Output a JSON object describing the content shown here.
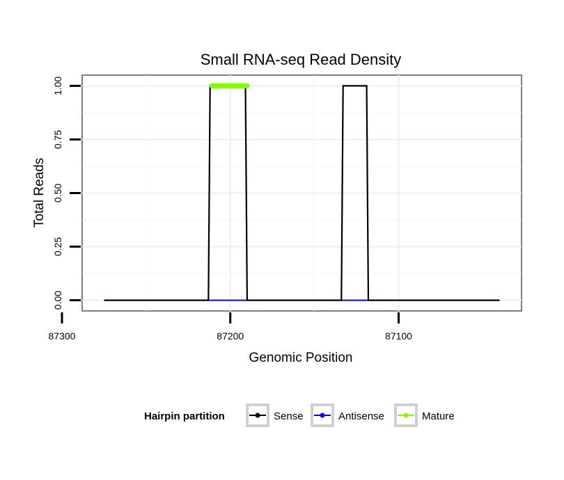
{
  "chart_data": {
    "type": "line",
    "title": "Small RNA-seq Read Density",
    "xlabel": "Genomic Position",
    "ylabel": "Total Reads",
    "xlim": [
      87288,
      87027
    ],
    "x_reversed": true,
    "ylim": [
      -0.05,
      1.05
    ],
    "xticks": [
      87300,
      87200,
      87100
    ],
    "xtick_labels": [
      "87300",
      "87200",
      "87100"
    ],
    "yticks": [
      0,
      0.25,
      0.5,
      0.75,
      1.0
    ],
    "ytick_labels": [
      "0.00",
      "0.25",
      "0.50",
      "0.75",
      "1.00"
    ],
    "grid": true,
    "series": [
      {
        "name": "Sense",
        "color": "#000000",
        "x": [
          87275,
          87213,
          87212,
          87191,
          87190,
          87134,
          87133,
          87119,
          87118,
          87040
        ],
        "y": [
          0,
          0,
          1,
          1,
          0,
          0,
          1,
          1,
          0,
          0
        ]
      },
      {
        "name": "Antisense",
        "color": "#0000ff",
        "x": [
          87213,
          87190,
          87134,
          87118
        ],
        "y": [
          0,
          0,
          0,
          0
        ],
        "segments": [
          [
            0,
            1
          ],
          [
            2,
            3
          ]
        ]
      },
      {
        "name": "Mature",
        "color": "#7fff00",
        "x": [
          87211,
          87190
        ],
        "y": [
          1,
          1
        ]
      }
    ],
    "legend": {
      "title": "Hairpin partition",
      "position": "bottom",
      "entries": [
        "Sense",
        "Antisense",
        "Mature"
      ]
    }
  }
}
